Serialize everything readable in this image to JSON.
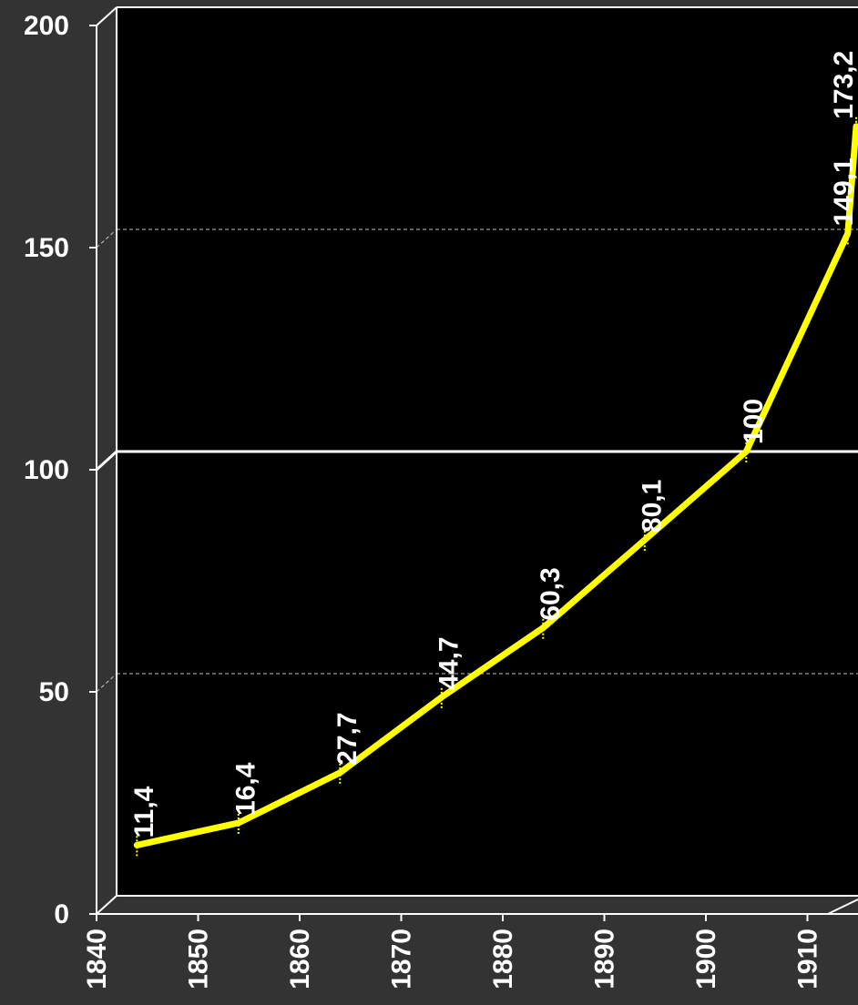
{
  "chart_data": {
    "type": "line",
    "title": "",
    "xlabel": "",
    "ylabel": "",
    "x": [
      1842,
      1852,
      1862,
      1872,
      1882,
      1892,
      1902,
      1912,
      1915
    ],
    "series": [
      {
        "color": "#ffff00",
        "values": [
          11.4,
          16.4,
          27.7,
          44.7,
          60.3,
          80.1,
          100,
          149.1,
          173.2
        ]
      }
    ],
    "data_labels": [
      "11,4",
      "16,4",
      "27,7",
      "44,7",
      "60,3",
      "80,1",
      "100",
      "149,1",
      "173,2"
    ],
    "x_ticks": [
      1840,
      1850,
      1860,
      1870,
      1880,
      1890,
      1900,
      1910
    ],
    "x_tick_labels": [
      "1840",
      "1850",
      "1860",
      "1870",
      "1880",
      "1890",
      "1900",
      "1910"
    ],
    "y_ticks": [
      0,
      50,
      100,
      150,
      200
    ],
    "y_tick_labels": [
      "0",
      "50",
      "100",
      "150",
      "200"
    ],
    "xlim": [
      1840,
      1915
    ],
    "ylim": [
      0,
      200
    ],
    "reference_line": 100,
    "grid": "dashed at 50 and 150",
    "legend": "none",
    "style": "3d-box",
    "colors": {
      "page_background": "#333333",
      "plot_background": "#000000",
      "axis": "#ffffff",
      "line": "#ffff00",
      "text": "#ffffff"
    }
  }
}
